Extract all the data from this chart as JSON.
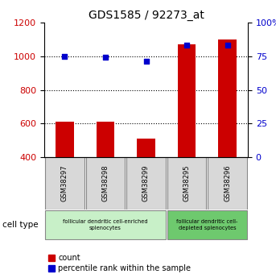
{
  "title": "GDS1585 / 92273_at",
  "samples": [
    "GSM38297",
    "GSM38298",
    "GSM38299",
    "GSM38295",
    "GSM38296"
  ],
  "counts": [
    610,
    610,
    510,
    1070,
    1100
  ],
  "percentiles": [
    75,
    74,
    71,
    83,
    83
  ],
  "ylim_left": [
    400,
    1200
  ],
  "ylim_right": [
    0,
    100
  ],
  "yticks_left": [
    400,
    600,
    800,
    1000,
    1200
  ],
  "yticks_right": [
    0,
    25,
    50,
    75,
    100
  ],
  "ytick_labels_right": [
    "0",
    "25",
    "50",
    "75",
    "100%"
  ],
  "bar_color": "#cc0000",
  "dot_color": "#0000cc",
  "bar_bottom": 400,
  "group1_label": "follicular dendritic cell-enriched\nsplenocytes",
  "group2_label": "follicular dendritic cell-\ndepleted splenocytes",
  "group1_color": "#c8f0c8",
  "group2_color": "#6ec96e",
  "cell_type_label": "cell type",
  "legend_count_label": "count",
  "legend_percentile_label": "percentile rank within the sample",
  "tick_label_color_left": "#cc0000",
  "tick_label_color_right": "#0000cc",
  "sample_bg_color": "#d8d8d8",
  "plot_bg_color": "#ffffff"
}
